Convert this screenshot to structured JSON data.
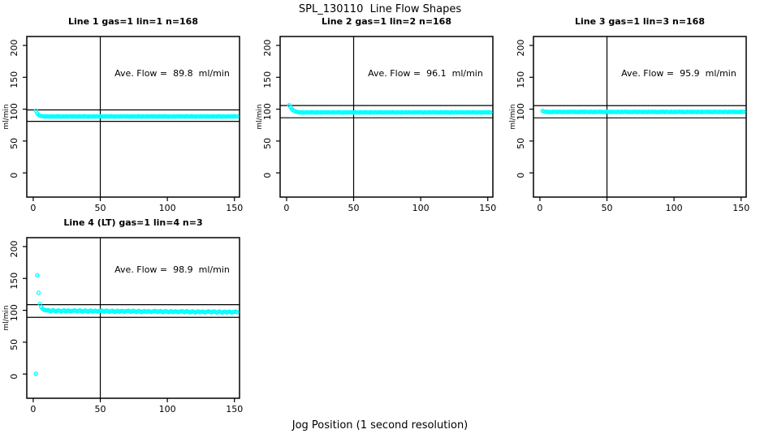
{
  "page": {
    "main_title": "SPL_130110  Line Flow Shapes",
    "x_axis_label": "Jog Position (1 second resolution)",
    "background_color": "#FFFFFF",
    "axis_color": "#000000",
    "marker_color": "#00FFFF"
  },
  "chart_data": [
    {
      "type": "scatter",
      "title": "Line 1 gas=1 lin=1 n=168",
      "annotation": "Ave. Flow =  89.8  ml/min",
      "ave_flow_ml_min": 89.8,
      "xlabel": "",
      "ylabel": "ml/min",
      "xticks": [
        0,
        50,
        100,
        150
      ],
      "yticks": [
        0,
        50,
        100,
        150,
        200
      ],
      "xlim": [
        -4.8,
        153.8
      ],
      "ylim": [
        -38,
        214
      ],
      "grid": false,
      "vline_x": 50,
      "hlines": [
        98.8,
        80.8
      ],
      "marker": "open-circle",
      "marker_color": "#00FFFF",
      "x_start": 2,
      "x_step": 1,
      "y": [
        97.5,
        93.5,
        91.0,
        89.8,
        89.2,
        89.0,
        88.8,
        88.3,
        88.9,
        88.2,
        88.6,
        88.1,
        88.9,
        88.4,
        88.7,
        88.2,
        89.0,
        88.4,
        88.6,
        88.0,
        88.8,
        88.5,
        88.2,
        88.9,
        88.3,
        88.6,
        88.8,
        88.3,
        88.9,
        88.2,
        88.6,
        88.1,
        88.9,
        88.4,
        88.7,
        88.2,
        89.0,
        88.4,
        88.6,
        88.0,
        88.8,
        88.5,
        88.2,
        88.9,
        88.3,
        88.6,
        88.8,
        88.3,
        88.9,
        88.2,
        88.6,
        88.1,
        88.9,
        88.4,
        88.7,
        88.2,
        89.0,
        88.4,
        88.6,
        88.0,
        88.8,
        88.5,
        88.2,
        88.9,
        88.3,
        88.6,
        88.8,
        88.3,
        88.9,
        88.2,
        88.6,
        88.1,
        88.9,
        88.4,
        88.7,
        88.2,
        89.0,
        88.4,
        88.6,
        88.0,
        88.8,
        88.5,
        88.2,
        88.9,
        88.3,
        88.6,
        88.8,
        88.3,
        88.9,
        88.2,
        88.6,
        88.1,
        88.9,
        88.4,
        88.7,
        88.2,
        89.0,
        88.4,
        88.6,
        88.0,
        88.8,
        88.5,
        88.2,
        88.9,
        88.3,
        88.6,
        88.8,
        88.3,
        88.9,
        88.2,
        88.6,
        88.1,
        88.9,
        88.4,
        88.7,
        88.2,
        89.0,
        88.4,
        88.6,
        88.0,
        88.8,
        88.5,
        88.2,
        88.9,
        88.3,
        88.6,
        88.8,
        88.3,
        88.9,
        88.2,
        88.6,
        88.1,
        88.9,
        88.4,
        88.7,
        88.2,
        89.0,
        88.4,
        88.6,
        88.0,
        88.8,
        88.5,
        88.2,
        88.9,
        88.3,
        88.6,
        88.8,
        88.3,
        88.9,
        88.2,
        88.6
      ]
    },
    {
      "type": "scatter",
      "title": "Line 2 gas=1 lin=2 n=168",
      "annotation": "Ave. Flow =  96.1  ml/min",
      "ave_flow_ml_min": 96.1,
      "xlabel": "",
      "ylabel": "ml/min",
      "xticks": [
        0,
        50,
        100,
        150
      ],
      "yticks": [
        0,
        50,
        100,
        150,
        200
      ],
      "xlim": [
        -4.8,
        153.8
      ],
      "ylim": [
        -38,
        214
      ],
      "grid": false,
      "vline_x": 50,
      "hlines": [
        105.7,
        86.5
      ],
      "marker": "open-circle",
      "marker_color": "#00FFFF",
      "x_start": 2,
      "x_step": 1,
      "y": [
        106.3,
        103.0,
        100.0,
        98.2,
        97.0,
        96.2,
        95.6,
        95.2,
        94.7,
        95.3,
        94.6,
        95.0,
        94.5,
        95.3,
        94.8,
        95.1,
        94.6,
        95.4,
        94.8,
        95.0,
        94.4,
        95.2,
        94.9,
        94.6,
        95.3,
        94.7,
        95.0,
        95.2,
        94.7,
        95.3,
        94.6,
        95.0,
        94.5,
        95.3,
        94.8,
        95.1,
        94.6,
        95.4,
        94.8,
        95.0,
        94.4,
        95.2,
        94.9,
        94.6,
        95.3,
        94.7,
        95.0,
        95.2,
        94.7,
        95.3,
        94.6,
        95.0,
        94.5,
        95.3,
        94.8,
        95.1,
        94.6,
        95.4,
        94.8,
        95.0,
        94.4,
        95.2,
        94.9,
        94.6,
        95.3,
        94.7,
        95.0,
        95.2,
        94.7,
        95.3,
        94.6,
        95.0,
        94.5,
        95.3,
        94.8,
        95.1,
        94.6,
        95.4,
        94.8,
        95.0,
        94.4,
        95.2,
        94.9,
        94.6,
        95.3,
        94.7,
        95.0,
        95.2,
        94.7,
        95.3,
        94.6,
        95.0,
        94.5,
        95.3,
        94.8,
        95.1,
        94.6,
        95.4,
        94.8,
        95.0,
        94.4,
        95.2,
        94.9,
        94.6,
        95.3,
        94.7,
        95.0,
        95.2,
        94.7,
        95.3,
        94.6,
        95.0,
        94.5,
        95.3,
        94.8,
        95.1,
        94.6,
        95.4,
        94.8,
        95.0,
        94.4,
        95.2,
        94.9,
        94.6,
        95.3,
        94.7,
        95.0,
        95.2,
        94.7,
        95.3,
        94.6,
        95.0,
        94.5,
        95.3,
        94.8,
        95.1,
        94.6,
        95.4,
        94.8,
        95.0,
        94.4,
        95.2,
        94.9,
        94.6,
        95.3,
        94.7,
        95.0,
        95.2,
        94.7,
        95.3,
        94.6
      ]
    },
    {
      "type": "scatter",
      "title": "Line 3 gas=1 lin=3 n=168",
      "annotation": "Ave. Flow =  95.9  ml/min",
      "ave_flow_ml_min": 95.9,
      "xlabel": "",
      "ylabel": "ml/min",
      "xticks": [
        0,
        50,
        100,
        150
      ],
      "yticks": [
        0,
        50,
        100,
        150,
        200
      ],
      "xlim": [
        -4.8,
        153.8
      ],
      "ylim": [
        -38,
        214
      ],
      "grid": false,
      "vline_x": 50,
      "hlines": [
        105.5,
        86.3
      ],
      "marker": "open-circle",
      "marker_color": "#00FFFF",
      "x_start": 2,
      "x_step": 1,
      "y": [
        97.2,
        96.4,
        96.0,
        95.5,
        96.1,
        95.4,
        95.8,
        95.3,
        96.1,
        95.6,
        95.9,
        95.4,
        96.2,
        95.6,
        95.8,
        95.2,
        96.0,
        95.7,
        95.4,
        96.1,
        95.5,
        95.8,
        96.0,
        95.5,
        96.1,
        95.4,
        95.8,
        95.3,
        96.1,
        95.6,
        95.9,
        95.4,
        96.2,
        95.6,
        95.8,
        95.2,
        96.0,
        95.7,
        95.4,
        96.1,
        95.5,
        95.8,
        96.0,
        95.5,
        96.1,
        95.4,
        95.8,
        95.3,
        96.1,
        95.6,
        95.9,
        95.4,
        96.2,
        95.6,
        95.8,
        95.2,
        96.0,
        95.7,
        95.4,
        96.1,
        95.5,
        95.8,
        96.0,
        95.5,
        96.1,
        95.4,
        95.8,
        95.3,
        96.1,
        95.6,
        95.9,
        95.4,
        96.2,
        95.6,
        95.8,
        95.2,
        96.0,
        95.7,
        95.4,
        96.1,
        95.5,
        95.8,
        96.0,
        95.5,
        96.1,
        95.4,
        95.8,
        95.3,
        96.1,
        95.6,
        95.9,
        95.4,
        96.2,
        95.6,
        95.8,
        95.2,
        96.0,
        95.7,
        95.4,
        96.1,
        95.5,
        95.8,
        96.0,
        95.5,
        96.1,
        95.4,
        95.8,
        95.3,
        96.1,
        95.6,
        95.9,
        95.4,
        96.2,
        95.6,
        95.8,
        95.2,
        96.0,
        95.7,
        95.4,
        96.1,
        95.5,
        95.8,
        96.0,
        95.5,
        96.1,
        95.4,
        95.8,
        95.3,
        96.1,
        95.6,
        95.9,
        95.4,
        96.2,
        95.6,
        95.8,
        95.2,
        96.0,
        95.7,
        95.4,
        96.1,
        95.5,
        95.8,
        96.0,
        95.5,
        96.1,
        95.4,
        95.8,
        95.3,
        96.1,
        95.6,
        95.9
      ]
    },
    {
      "type": "scatter",
      "title": "Line 4 (LT) gas=1 lin=4 n=3",
      "annotation": "Ave. Flow =  98.9  ml/min",
      "ave_flow_ml_min": 98.9,
      "xlabel": "",
      "ylabel": "ml/min",
      "xticks": [
        0,
        50,
        100,
        150
      ],
      "yticks": [
        0,
        50,
        100,
        150,
        200
      ],
      "xlim": [
        -4.8,
        153.8
      ],
      "ylim": [
        -38,
        214
      ],
      "grid": false,
      "vline_x": 50,
      "hlines": [
        108.8,
        89.0
      ],
      "marker": "open-circle",
      "marker_color": "#00FFFF",
      "x_start": 2,
      "x_step": 1,
      "y": [
        0.5,
        155.0,
        127.5,
        110.0,
        105.0,
        102.5,
        101.0,
        100.2,
        99.8,
        100.3,
        99.2,
        98.6,
        99.9,
        100.1,
        98.9,
        98.3,
        99.6,
        100.0,
        98.7,
        98.2,
        99.4,
        99.9,
        98.5,
        98.9,
        99.7,
        99.0,
        98.3,
        99.2,
        99.5,
        100.0,
        98.9,
        98.3,
        99.6,
        99.8,
        98.6,
        98.0,
        99.3,
        99.7,
        98.4,
        97.9,
        99.1,
        99.6,
        98.2,
        98.6,
        99.4,
        98.7,
        98.0,
        98.9,
        99.2,
        99.7,
        98.6,
        98.0,
        99.3,
        99.5,
        98.3,
        97.7,
        99.0,
        99.4,
        98.1,
        97.6,
        98.8,
        99.3,
        97.9,
        98.3,
        99.1,
        98.4,
        97.7,
        98.6,
        98.9,
        99.4,
        98.3,
        97.7,
        99.0,
        99.2,
        98.0,
        97.4,
        98.7,
        99.1,
        97.8,
        97.3,
        98.5,
        99.0,
        97.6,
        98.0,
        98.8,
        98.1,
        97.4,
        98.3,
        98.6,
        99.1,
        98.0,
        97.4,
        98.7,
        98.9,
        97.7,
        97.1,
        98.4,
        98.8,
        97.5,
        97.0,
        98.2,
        98.7,
        97.3,
        97.7,
        98.5,
        97.8,
        97.1,
        98.0,
        98.3,
        98.8,
        97.7,
        97.1,
        98.4,
        98.6,
        97.4,
        96.8,
        98.1,
        98.5,
        97.2,
        96.7,
        97.9,
        98.4,
        97.0,
        97.4,
        98.2,
        97.5,
        96.8,
        97.7,
        98.0,
        98.5,
        97.4,
        96.8,
        98.1,
        98.3,
        97.1,
        96.5,
        97.8,
        98.2,
        96.9,
        96.4,
        97.6,
        98.1,
        96.7,
        97.1,
        97.9,
        97.2,
        96.5,
        97.4,
        97.7,
        98.2,
        97.1
      ]
    }
  ]
}
